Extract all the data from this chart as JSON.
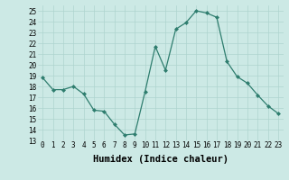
{
  "x": [
    0,
    1,
    2,
    3,
    4,
    5,
    6,
    7,
    8,
    9,
    10,
    11,
    12,
    13,
    14,
    15,
    16,
    17,
    18,
    19,
    20,
    21,
    22,
    23
  ],
  "y": [
    18.8,
    17.7,
    17.7,
    18.0,
    17.3,
    15.8,
    15.7,
    14.5,
    13.5,
    13.6,
    17.5,
    21.7,
    19.5,
    23.3,
    23.9,
    25.0,
    24.8,
    24.4,
    20.3,
    18.9,
    18.3,
    17.2,
    16.2,
    15.5
  ],
  "line_color": "#2e7d6e",
  "marker": "D",
  "marker_size": 2,
  "bg_color": "#cce9e5",
  "grid_color": "#aed4cf",
  "xlabel": "Humidex (Indice chaleur)",
  "ylim": [
    13,
    25.5
  ],
  "yticks": [
    13,
    14,
    15,
    16,
    17,
    18,
    19,
    20,
    21,
    22,
    23,
    24,
    25
  ],
  "xticks": [
    0,
    1,
    2,
    3,
    4,
    5,
    6,
    7,
    8,
    9,
    10,
    11,
    12,
    13,
    14,
    15,
    16,
    17,
    18,
    19,
    20,
    21,
    22,
    23
  ],
  "tick_fontsize": 5.5,
  "xlabel_fontsize": 7.5,
  "linewidth": 0.9
}
